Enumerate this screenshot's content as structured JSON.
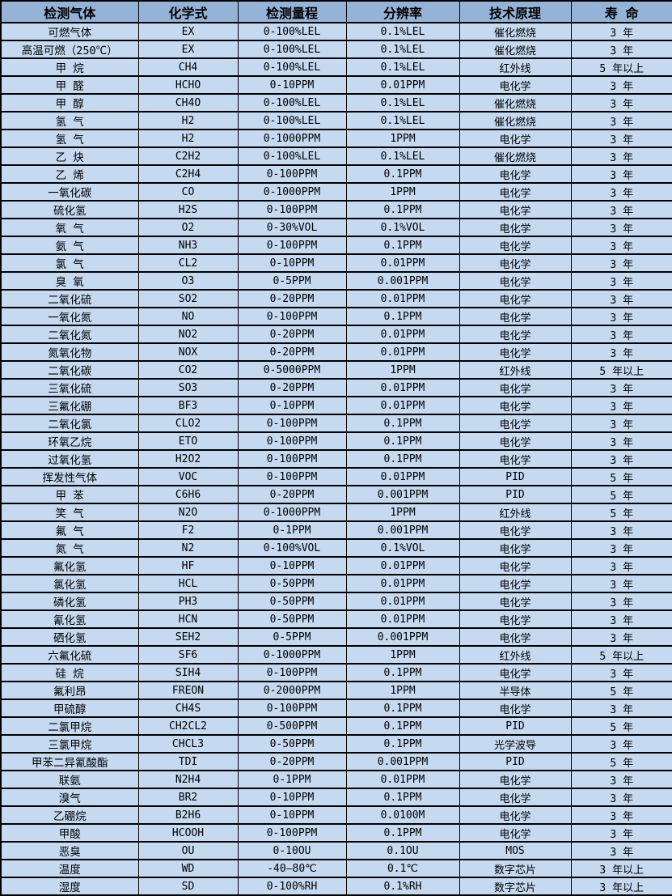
{
  "colors": {
    "header_background": "#95B3D7",
    "row_background": "#C5D9F1",
    "border": "#000000",
    "text": "#000000"
  },
  "table": {
    "headers": [
      "检测气体",
      "化学式",
      "检测量程",
      "分辨率",
      "技术原理",
      "寿 命"
    ],
    "rows": [
      [
        "可燃气体",
        "EX",
        "0-100%LEL",
        "0.1%LEL",
        "催化燃烧",
        "3 年"
      ],
      [
        "高温可燃（250℃）",
        "EX",
        "0-100%LEL",
        "0.1%LEL",
        "催化燃烧",
        "3 年"
      ],
      [
        "甲 烷",
        "CH4",
        "0-100%LEL",
        "0.1%LEL",
        "红外线",
        "5 年以上"
      ],
      [
        "甲 醛",
        "HCHO",
        "0-10PPM",
        "0.01PPM",
        "电化学",
        "3 年"
      ],
      [
        "甲 醇",
        "CH4O",
        "0-100%LEL",
        "0.1%LEL",
        "催化燃烧",
        "3 年"
      ],
      [
        "氢 气",
        "H2",
        "0-100%LEL",
        "0.1%LEL",
        "催化燃烧",
        "3 年"
      ],
      [
        "氢 气",
        "H2",
        "0-1000PPM",
        "1PPM",
        "电化学",
        "3 年"
      ],
      [
        "乙 炔",
        "C2H2",
        "0-100%LEL",
        "0.1%LEL",
        "催化燃烧",
        "3 年"
      ],
      [
        "乙 烯",
        "C2H4",
        "0-100PPM",
        "0.1PPM",
        "电化学",
        "3 年"
      ],
      [
        "一氧化碳",
        "CO",
        "0-1000PPM",
        "1PPM",
        "电化学",
        "3 年"
      ],
      [
        "硫化氢",
        "H2S",
        "0-100PPM",
        "0.1PPM",
        "电化学",
        "3 年"
      ],
      [
        "氧 气",
        "O2",
        "0-30%VOL",
        "0.1%VOL",
        "电化学",
        "3 年"
      ],
      [
        "氨 气",
        "NH3",
        "0-100PPM",
        "0.1PPM",
        "电化学",
        "3 年"
      ],
      [
        "氯 气",
        "CL2",
        "0-10PPM",
        "0.01PPM",
        "电化学",
        "3 年"
      ],
      [
        "臭 氧",
        "O3",
        "0-5PPM",
        "0.001PPM",
        "电化学",
        "3 年"
      ],
      [
        "二氧化硫",
        "SO2",
        "0-20PPM",
        "0.01PPM",
        "电化学",
        "3 年"
      ],
      [
        "一氧化氮",
        "NO",
        "0-100PPM",
        "0.1PPM",
        "电化学",
        "3 年"
      ],
      [
        "二氧化氮",
        "NO2",
        "0-20PPM",
        "0.01PPM",
        "电化学",
        "3 年"
      ],
      [
        "氮氧化物",
        "NOX",
        "0-20PPM",
        "0.01PPM",
        "电化学",
        "3 年"
      ],
      [
        "二氧化碳",
        "CO2",
        "0-5000PPM",
        "1PPM",
        "红外线",
        "5 年以上"
      ],
      [
        "三氧化硫",
        "SO3",
        "0-20PPM",
        "0.01PPM",
        "电化学",
        "3 年"
      ],
      [
        "三氟化硼",
        "BF3",
        "0-10PPM",
        "0.01PPM",
        "电化学",
        "3 年"
      ],
      [
        "二氧化氯",
        "CLO2",
        "0-100PPM",
        "0.1PPM",
        "电化学",
        "3 年"
      ],
      [
        "环氧乙烷",
        "ETO",
        "0-100PPM",
        "0.1PPM",
        "电化学",
        "3 年"
      ],
      [
        "过氧化氢",
        "H2O2",
        "0-100PPM",
        "0.1PPM",
        "电化学",
        "3 年"
      ],
      [
        "挥发性气体",
        "VOC",
        "0-100PPM",
        "0.01PPM",
        "PID",
        "5 年"
      ],
      [
        "甲 苯",
        "C6H6",
        "0-20PPM",
        "0.001PPM",
        "PID",
        "5 年"
      ],
      [
        "笑 气",
        "N2O",
        "0-1000PPM",
        "1PPM",
        "红外线",
        "5 年"
      ],
      [
        "氟 气",
        "F2",
        "0-1PPM",
        "0.001PPM",
        "电化学",
        "3 年"
      ],
      [
        "氮 气",
        "N2",
        "0-100%VOL",
        "0.1%VOL",
        "电化学",
        "3 年"
      ],
      [
        "氟化氢",
        "HF",
        "0-10PPM",
        "0.01PPM",
        "电化学",
        "3 年"
      ],
      [
        "氯化氢",
        "HCL",
        "0-50PPM",
        "0.01PPM",
        "电化学",
        "3 年"
      ],
      [
        "磷化氢",
        "PH3",
        "0-50PPM",
        "0.01PPM",
        "电化学",
        "3 年"
      ],
      [
        "氰化氢",
        "HCN",
        "0-50PPM",
        "0.01PPM",
        "电化学",
        "3 年"
      ],
      [
        "硒化氢",
        "SEH2",
        "0-5PPM",
        "0.001PPM",
        "电化学",
        "3 年"
      ],
      [
        "六氟化硫",
        "SF6",
        "0-1000PPM",
        "1PPM",
        "红外线",
        "5 年以上"
      ],
      [
        "硅 烷",
        "SIH4",
        "0-100PPM",
        "0.1PPM",
        "电化学",
        "3 年"
      ],
      [
        "氟利昂",
        "FREON",
        "0-2000PPM",
        "1PPM",
        "半导体",
        "5 年"
      ],
      [
        "甲硫醇",
        "CH4S",
        "0-100PPM",
        "0.1PPM",
        "电化学",
        "3 年"
      ],
      [
        "二氯甲烷",
        "CH2CL2",
        "0-500PPM",
        "0.1PPM",
        "PID",
        "5 年"
      ],
      [
        "三氯甲烷",
        "CHCL3",
        "0-50PPM",
        "0.1PPM",
        "光学波导",
        "3 年"
      ],
      [
        "甲苯二异氰酸酯",
        "TDI",
        "0-20PPM",
        "0.001PPM",
        "PID",
        "5 年"
      ],
      [
        "联氨",
        "N2H4",
        "0-1PPM",
        "0.01PPM",
        "电化学",
        "3 年"
      ],
      [
        "溴气",
        "BR2",
        "0-10PPM",
        "0.1PPM",
        "电化学",
        "3 年"
      ],
      [
        "乙硼烷",
        "B2H6",
        "0-10PPM",
        "0.0100M",
        "电化学",
        "3 年"
      ],
      [
        "甲酸",
        "HCOOH",
        "0-100PPM",
        "0.1PPM",
        "电化学",
        "3 年"
      ],
      [
        "恶臭",
        "OU",
        "0-10OU",
        "0.1OU",
        "MOS",
        "3 年"
      ],
      [
        "温度",
        "WD",
        "-40—80℃",
        "0.1℃",
        "数字芯片",
        "3 年以上"
      ],
      [
        "湿度",
        "SD",
        "0-100%RH",
        "0.1%RH",
        "数字芯片",
        "3 年以上"
      ]
    ]
  }
}
